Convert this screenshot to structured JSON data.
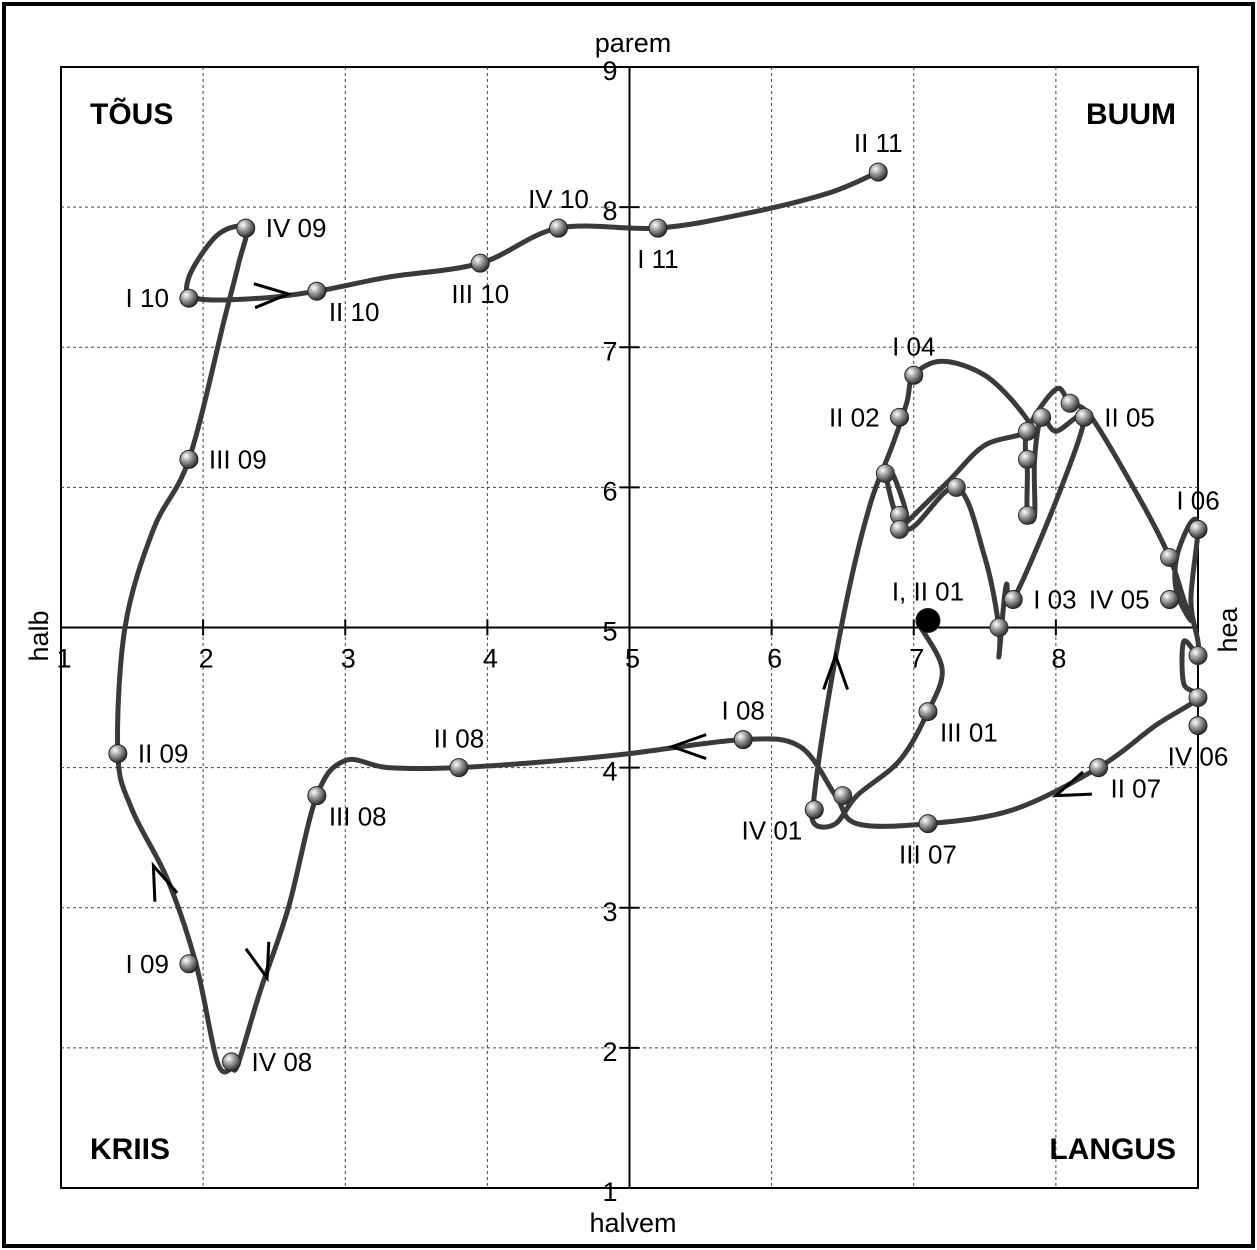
{
  "chart_data": {
    "type": "scatter",
    "xlim": [
      1,
      9
    ],
    "ylim": [
      1,
      9
    ],
    "x_ticks": [
      1,
      2,
      3,
      4,
      5,
      6,
      7,
      8,
      9
    ],
    "y_ticks": [
      1,
      2,
      3,
      4,
      5,
      6,
      7,
      8,
      9
    ],
    "x_tick_labels": [
      "1",
      "2",
      "3",
      "4",
      "5",
      "6",
      "7",
      "8"
    ],
    "y_tick_labels": [
      "1",
      "2",
      "3",
      "4",
      "5",
      "6",
      "7",
      "8",
      "9"
    ],
    "grid": true,
    "axis_labels": {
      "top": "parem",
      "bottom": "halvem",
      "left": "halb",
      "right": "hea"
    },
    "quadrants": {
      "top_left": "TÕUS",
      "top_right": "BUUM",
      "bottom_left": "KRIIS",
      "bottom_right": "LANGUS"
    },
    "colors": {
      "line": "#3a3a3a",
      "grid": "#444444",
      "marker": "#9a9a9a",
      "center": "#000000"
    },
    "labeled_points": [
      {
        "label": "I, II 01",
        "x": 7.1,
        "y": 5.05,
        "pos": "above"
      },
      {
        "label": "III 01",
        "x": 7.1,
        "y": 4.4,
        "pos": "br"
      },
      {
        "label": "IV 01",
        "x": 6.3,
        "y": 3.7,
        "pos": "bl"
      },
      {
        "label": "II 02",
        "x": 6.9,
        "y": 6.5,
        "pos": "left"
      },
      {
        "label": "I 03",
        "x": 7.7,
        "y": 5.2,
        "pos": "right"
      },
      {
        "label": "I 04",
        "x": 7.0,
        "y": 6.8,
        "pos": "above"
      },
      {
        "label": "II 05",
        "x": 8.2,
        "y": 6.5,
        "pos": "right"
      },
      {
        "label": "IV 05",
        "x": 8.8,
        "y": 5.2,
        "pos": "left"
      },
      {
        "label": "I 06",
        "x": 9.0,
        "y": 5.7,
        "pos": "above"
      },
      {
        "label": "IV 06",
        "x": 9.0,
        "y": 4.3,
        "pos": "below"
      },
      {
        "label": "II 07",
        "x": 8.3,
        "y": 4.0,
        "pos": "br"
      },
      {
        "label": "III 07",
        "x": 7.1,
        "y": 3.6,
        "pos": "below"
      },
      {
        "label": "I 08",
        "x": 5.8,
        "y": 4.2,
        "pos": "above"
      },
      {
        "label": "II 08",
        "x": 3.8,
        "y": 4.0,
        "pos": "above"
      },
      {
        "label": "III 08",
        "x": 2.8,
        "y": 3.8,
        "pos": "br"
      },
      {
        "label": "IV 08",
        "x": 2.2,
        "y": 1.9,
        "pos": "right"
      },
      {
        "label": "I 09",
        "x": 1.9,
        "y": 2.6,
        "pos": "left"
      },
      {
        "label": "II 09",
        "x": 1.4,
        "y": 4.1,
        "pos": "right"
      },
      {
        "label": "III 09",
        "x": 1.9,
        "y": 6.2,
        "pos": "right"
      },
      {
        "label": "IV 09",
        "x": 2.3,
        "y": 7.85,
        "pos": "right"
      },
      {
        "label": "I 10",
        "x": 1.9,
        "y": 7.35,
        "pos": "left"
      },
      {
        "label": "II 10",
        "x": 2.8,
        "y": 7.4,
        "pos": "br"
      },
      {
        "label": "III 10",
        "x": 3.95,
        "y": 7.6,
        "pos": "below"
      },
      {
        "label": "IV 10",
        "x": 4.5,
        "y": 7.85,
        "pos": "above"
      },
      {
        "label": "I 11",
        "x": 5.2,
        "y": 7.85,
        "pos": "below"
      },
      {
        "label": "II 11",
        "x": 6.75,
        "y": 8.25,
        "pos": "above"
      }
    ],
    "unlabeled_points": [
      {
        "x": 7.3,
        "y": 6.0
      },
      {
        "x": 7.6,
        "y": 5.0
      },
      {
        "x": 6.8,
        "y": 6.1
      },
      {
        "x": 6.9,
        "y": 5.8
      },
      {
        "x": 6.9,
        "y": 5.7
      },
      {
        "x": 7.8,
        "y": 6.4
      },
      {
        "x": 7.9,
        "y": 6.5
      },
      {
        "x": 7.8,
        "y": 6.2
      },
      {
        "x": 7.8,
        "y": 5.8
      },
      {
        "x": 8.1,
        "y": 6.6
      },
      {
        "x": 8.8,
        "y": 5.5
      },
      {
        "x": 9.0,
        "y": 4.8
      },
      {
        "x": 9.0,
        "y": 4.5
      },
      {
        "x": 6.5,
        "y": 3.8
      }
    ],
    "path": [
      [
        7.05,
        5.0
      ],
      [
        7.2,
        4.7
      ],
      [
        7.1,
        4.4
      ],
      [
        6.9,
        4.05
      ],
      [
        6.6,
        3.8
      ],
      [
        6.45,
        3.6
      ],
      [
        6.3,
        3.6
      ],
      [
        6.3,
        3.8
      ],
      [
        6.4,
        4.5
      ],
      [
        6.55,
        5.3
      ],
      [
        6.7,
        5.9
      ],
      [
        6.85,
        6.3
      ],
      [
        6.95,
        6.6
      ],
      [
        7.0,
        6.8
      ],
      [
        7.2,
        6.9
      ],
      [
        7.5,
        6.8
      ],
      [
        7.75,
        6.55
      ],
      [
        7.8,
        6.4
      ],
      [
        7.5,
        6.3
      ],
      [
        7.25,
        6.05
      ],
      [
        6.95,
        5.75
      ],
      [
        6.9,
        5.7
      ],
      [
        6.95,
        5.8
      ],
      [
        6.85,
        6.1
      ],
      [
        6.8,
        6.1
      ],
      [
        6.95,
        5.7
      ],
      [
        7.3,
        6.0
      ],
      [
        7.5,
        5.5
      ],
      [
        7.6,
        5.0
      ],
      [
        7.6,
        4.8
      ],
      [
        7.65,
        5.3
      ],
      [
        7.7,
        5.2
      ],
      [
        8.0,
        5.9
      ],
      [
        8.2,
        6.5
      ],
      [
        8.0,
        6.4
      ],
      [
        7.9,
        6.5
      ],
      [
        7.85,
        6.2
      ],
      [
        7.85,
        5.8
      ],
      [
        7.8,
        5.8
      ],
      [
        7.8,
        6.1
      ],
      [
        7.8,
        6.4
      ],
      [
        8.0,
        6.7
      ],
      [
        8.1,
        6.6
      ],
      [
        8.25,
        6.5
      ],
      [
        8.6,
        5.9
      ],
      [
        8.8,
        5.5
      ],
      [
        8.9,
        5.2
      ],
      [
        8.95,
        5.05
      ],
      [
        8.85,
        5.25
      ],
      [
        8.85,
        5.5
      ],
      [
        8.95,
        5.75
      ],
      [
        9.0,
        5.7
      ],
      [
        8.95,
        5.2
      ],
      [
        9.0,
        4.9
      ],
      [
        9.0,
        4.8
      ],
      [
        8.9,
        4.9
      ],
      [
        8.9,
        4.6
      ],
      [
        9.0,
        4.5
      ],
      [
        8.7,
        4.3
      ],
      [
        8.3,
        4.0
      ],
      [
        7.7,
        3.7
      ],
      [
        7.1,
        3.6
      ],
      [
        6.6,
        3.6
      ],
      [
        6.45,
        3.8
      ],
      [
        6.2,
        4.15
      ],
      [
        5.8,
        4.2
      ],
      [
        5.0,
        4.1
      ],
      [
        4.5,
        4.05
      ],
      [
        3.8,
        4.0
      ],
      [
        3.3,
        4.0
      ],
      [
        3.0,
        4.05
      ],
      [
        2.8,
        3.8
      ],
      [
        2.6,
        3.0
      ],
      [
        2.4,
        2.4
      ],
      [
        2.25,
        1.9
      ],
      [
        2.2,
        1.85
      ],
      [
        2.1,
        1.9
      ],
      [
        1.95,
        2.6
      ],
      [
        1.75,
        3.2
      ],
      [
        1.5,
        3.7
      ],
      [
        1.4,
        4.1
      ],
      [
        1.45,
        5.0
      ],
      [
        1.65,
        5.7
      ],
      [
        1.9,
        6.2
      ],
      [
        2.15,
        7.2
      ],
      [
        2.25,
        7.6
      ],
      [
        2.3,
        7.85
      ],
      [
        2.1,
        7.8
      ],
      [
        1.9,
        7.5
      ],
      [
        1.95,
        7.35
      ],
      [
        2.4,
        7.35
      ],
      [
        2.8,
        7.4
      ],
      [
        3.3,
        7.5
      ],
      [
        3.95,
        7.6
      ],
      [
        4.5,
        7.85
      ],
      [
        5.2,
        7.85
      ],
      [
        5.8,
        7.95
      ],
      [
        6.4,
        8.1
      ],
      [
        6.75,
        8.25
      ]
    ],
    "arrows": [
      {
        "at": [
          6.45,
          4.8
        ],
        "dir": [
          0,
          1
        ]
      },
      {
        "at": [
          2.6,
          7.38
        ],
        "dir": [
          1,
          0.05
        ]
      },
      {
        "at": [
          5.3,
          4.15
        ],
        "dir": [
          -1,
          0
        ]
      },
      {
        "at": [
          8.0,
          3.8
        ],
        "dir": [
          -1,
          -0.4
        ]
      },
      {
        "at": [
          1.65,
          3.3
        ],
        "dir": [
          -0.4,
          1
        ]
      },
      {
        "at": [
          2.45,
          2.5
        ],
        "dir": [
          0.3,
          -1
        ]
      }
    ]
  }
}
